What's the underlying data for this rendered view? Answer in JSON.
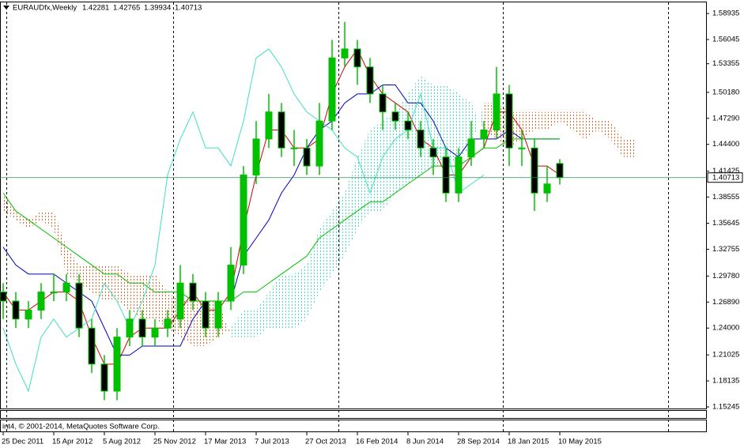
{
  "chart_data": {
    "type": "candlestick",
    "symbol": "EURAUDfx,Weekly",
    "copyright": "int4, © 2001-2014, MetaQuotes Software Corp.",
    "ylim": [
      1.1507,
      1.6017
    ],
    "yticks": [
      1.58935,
      1.56045,
      1.53355,
      {
        "value": 1.5018,
        "label": "1.50180"
      },
      {
        "value": 1.4729,
        "label": "1.47290"
      },
      {
        "value": 1.444,
        "label": "1.44400"
      },
      1.41425,
      1.38555,
      1.35645,
      1.32755,
      {
        "value": 1.2978,
        "label": "1.29780"
      },
      {
        "value": 1.2689,
        "label": "1.26890"
      },
      {
        "value": 1.24,
        "label": "1.24000"
      },
      1.21025,
      1.18135,
      1.15245
    ],
    "xticks": [
      {
        "value": 0,
        "label": "25 Dec 2011"
      },
      {
        "value": 4,
        "label": "15 Apr 2012"
      },
      {
        "value": 8,
        "label": "5 Aug 2012"
      },
      {
        "value": 12,
        "label": "25 Nov 2012"
      },
      {
        "value": 16,
        "label": "17 Mar 2013"
      },
      {
        "value": 20,
        "label": "7 Jul 2013"
      },
      {
        "value": 24,
        "label": "27 Oct 2013"
      },
      {
        "value": 28,
        "label": "16 Feb 2014"
      },
      {
        "value": 32,
        "label": "8 Jun 2014"
      },
      {
        "value": 36,
        "label": "28 Sep 2014"
      },
      {
        "value": 40,
        "label": "18 Jan 2015"
      },
      {
        "value": 44,
        "label": "10 May 2015"
      }
    ],
    "candles": {
      "color": "#00c000",
      "open": [
        1.28,
        1.27,
        1.25,
        1.26,
        1.28,
        1.28,
        1.29,
        1.24,
        1.2,
        1.17,
        1.23,
        1.25,
        1.23,
        1.24,
        1.25,
        1.29,
        1.27,
        1.24,
        1.27,
        1.31,
        1.41,
        1.45,
        1.48,
        1.44,
        1.44,
        1.42,
        1.47,
        1.54,
        1.55,
        1.53,
        1.5,
        1.48,
        1.47,
        1.46,
        1.44,
        1.43,
        1.39,
        1.43,
        1.45,
        1.46,
        1.5,
        1.44,
        1.44,
        1.39,
        1.42281
      ],
      "high": [
        1.29,
        1.28,
        1.27,
        1.29,
        1.3,
        1.3,
        1.3,
        1.25,
        1.21,
        1.24,
        1.26,
        1.26,
        1.25,
        1.26,
        1.31,
        1.3,
        1.28,
        1.28,
        1.33,
        1.42,
        1.47,
        1.5,
        1.49,
        1.46,
        1.45,
        1.49,
        1.56,
        1.58,
        1.56,
        1.54,
        1.51,
        1.49,
        1.48,
        1.47,
        1.45,
        1.44,
        1.44,
        1.47,
        1.47,
        1.53,
        1.51,
        1.46,
        1.45,
        1.42,
        1.42765
      ],
      "low": [
        1.25,
        1.24,
        1.24,
        1.25,
        1.27,
        1.27,
        1.23,
        1.19,
        1.16,
        1.16,
        1.22,
        1.22,
        1.22,
        1.23,
        1.24,
        1.26,
        1.23,
        1.23,
        1.26,
        1.3,
        1.4,
        1.44,
        1.43,
        1.42,
        1.41,
        1.41,
        1.46,
        1.53,
        1.51,
        1.49,
        1.46,
        1.46,
        1.45,
        1.43,
        1.41,
        1.38,
        1.38,
        1.42,
        1.44,
        1.45,
        1.42,
        1.42,
        1.37,
        1.38,
        1.39934
      ],
      "close": [
        1.27,
        1.25,
        1.26,
        1.28,
        1.28,
        1.29,
        1.24,
        1.2,
        1.17,
        1.23,
        1.25,
        1.23,
        1.24,
        1.25,
        1.29,
        1.27,
        1.24,
        1.27,
        1.31,
        1.41,
        1.45,
        1.48,
        1.44,
        1.44,
        1.42,
        1.47,
        1.54,
        1.55,
        1.53,
        1.5,
        1.48,
        1.47,
        1.46,
        1.44,
        1.43,
        1.39,
        1.43,
        1.45,
        1.46,
        1.5,
        1.44,
        1.44,
        1.39,
        1.4,
        1.40713
      ]
    },
    "series": [
      {
        "color": "#d00000",
        "values": [
          1.28,
          1.26,
          1.26,
          1.27,
          1.28,
          1.28,
          1.27,
          1.23,
          1.2,
          1.2,
          1.23,
          1.24,
          1.24,
          1.24,
          1.26,
          1.28,
          1.26,
          1.26,
          1.28,
          1.35,
          1.41,
          1.46,
          1.46,
          1.44,
          1.44,
          1.45,
          1.5,
          1.53,
          1.55,
          1.52,
          1.5,
          1.49,
          1.48,
          1.45,
          1.44,
          1.41,
          1.41,
          1.43,
          1.44,
          1.48,
          1.48,
          1.46,
          1.42,
          1.42,
          1.41
        ]
      },
      {
        "color": "#0000c0",
        "values": [
          1.33,
          1.31,
          1.3,
          1.3,
          1.3,
          1.29,
          1.28,
          1.27,
          1.24,
          1.21,
          1.21,
          1.22,
          1.22,
          1.22,
          1.22,
          1.25,
          1.27,
          1.27,
          1.27,
          1.32,
          1.34,
          1.36,
          1.39,
          1.41,
          1.44,
          1.46,
          1.47,
          1.49,
          1.5,
          1.5,
          1.51,
          1.51,
          1.49,
          1.49,
          1.47,
          1.44,
          1.43,
          1.45,
          1.45,
          1.45,
          1.46,
          1.45,
          1.45,
          1.45,
          1.45
        ]
      },
      {
        "color": "#00c000",
        "values": [
          1.39,
          1.37,
          1.36,
          1.35,
          1.34,
          1.33,
          1.32,
          1.31,
          1.3,
          1.3,
          1.29,
          1.29,
          1.28,
          1.28,
          1.28,
          1.27,
          1.27,
          1.27,
          1.27,
          1.28,
          1.28,
          1.29,
          1.3,
          1.31,
          1.32,
          1.34,
          1.35,
          1.36,
          1.37,
          1.38,
          1.38,
          1.39,
          1.4,
          1.41,
          1.42,
          1.42,
          1.42,
          1.43,
          1.44,
          1.44,
          1.45,
          1.45,
          1.45,
          1.45,
          1.45
        ]
      },
      {
        "color": "#40e0c0",
        "values": [
          1.24,
          1.2,
          1.17,
          1.23,
          1.25,
          1.23,
          1.24,
          1.25,
          1.29,
          1.27,
          1.24,
          1.27,
          1.31,
          1.41,
          1.45,
          1.48,
          1.44,
          1.44,
          1.42,
          1.47,
          1.54,
          1.55,
          1.53,
          1.5,
          1.48,
          1.47,
          1.46,
          1.44,
          1.43,
          1.39,
          1.43,
          1.45,
          1.46,
          1.5,
          1.44,
          1.44,
          1.39,
          1.4,
          1.41,
          null,
          null,
          null,
          null,
          null,
          null
        ]
      }
    ],
    "cloud": {
      "up_color": "#40e0c0",
      "down_color": "#f06020",
      "span_a": [
        1.37,
        1.36,
        1.35,
        1.36,
        1.35,
        1.3,
        1.29,
        1.28,
        1.27,
        1.27,
        1.26,
        1.25,
        1.25,
        1.24,
        1.23,
        1.22,
        1.22,
        1.23,
        1.24,
        1.26,
        1.26,
        1.28,
        1.3,
        1.3,
        1.31,
        1.35,
        1.37,
        1.39,
        1.43,
        1.46,
        1.47,
        1.48,
        1.5,
        1.52,
        1.51,
        1.51,
        1.5,
        1.49,
        1.46,
        1.45,
        1.44,
        1.45,
        1.46,
        1.46,
        1.47,
        1.46,
        1.45,
        1.46,
        1.45,
        1.43,
        1.43
      ],
      "span_b": [
        1.39,
        1.37,
        1.36,
        1.37,
        1.37,
        1.33,
        1.31,
        1.31,
        1.31,
        1.31,
        1.3,
        1.3,
        1.3,
        1.28,
        1.27,
        1.27,
        1.27,
        1.27,
        1.23,
        1.23,
        1.23,
        1.24,
        1.24,
        1.24,
        1.25,
        1.28,
        1.3,
        1.32,
        1.35,
        1.37,
        1.37,
        1.39,
        1.4,
        1.41,
        1.42,
        1.42,
        1.43,
        1.44,
        1.49,
        1.49,
        1.48,
        1.48,
        1.48,
        1.48,
        1.48,
        1.48,
        1.48,
        1.47,
        1.47,
        1.45,
        1.45
      ]
    }
  }
}
